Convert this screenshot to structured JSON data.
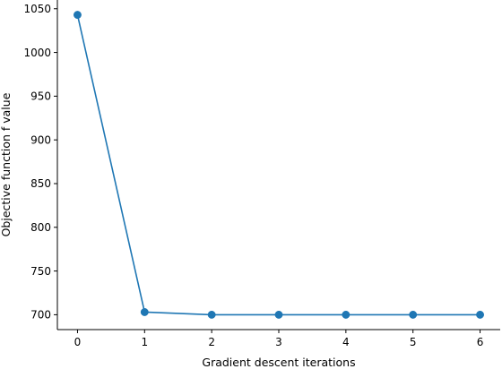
{
  "chart_data": {
    "type": "line",
    "title": "",
    "xlabel": "Gradient descent iterations",
    "ylabel": "Objective function f value",
    "x": [
      0,
      1,
      2,
      3,
      4,
      5,
      6
    ],
    "xticks": [
      "0",
      "1",
      "2",
      "3",
      "4",
      "5",
      "6"
    ],
    "yticks": [
      "700",
      "750",
      "800",
      "850",
      "900",
      "950",
      "1000",
      "1050"
    ],
    "series": [
      {
        "values": [
          1043,
          703,
          700,
          700,
          700,
          700,
          700
        ],
        "color": "#1f77b4",
        "marker": "circle"
      }
    ],
    "xlim": [
      -0.3,
      6.3
    ],
    "ylim": [
      683,
      1060
    ],
    "grid": false,
    "legend": "none",
    "spines": "left-bottom"
  }
}
